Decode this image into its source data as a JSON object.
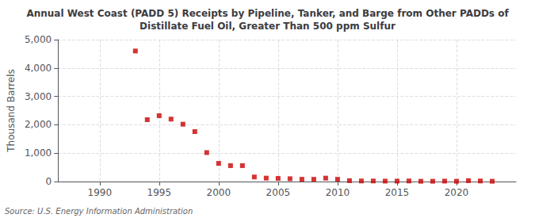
{
  "chart_data": {
    "type": "scatter",
    "title": "Annual West Coast (PADD 5) Receipts by Pipeline, Tanker, and Barge from Other PADDs of\nDistillate Fuel Oil, Greater Than 500 ppm Sulfur",
    "ylabel": "Thousand Barrels",
    "annotation": "Source: U.S. Energy Information Administration",
    "x": [
      1993,
      1994,
      1995,
      1996,
      1997,
      1998,
      1999,
      2000,
      2001,
      2002,
      2003,
      2004,
      2005,
      2006,
      2007,
      2008,
      2009,
      2010,
      2011,
      2012,
      2013,
      2014,
      2015,
      2016,
      2017,
      2018,
      2019,
      2020,
      2021,
      2022,
      2023
    ],
    "values": [
      4600,
      2180,
      2320,
      2200,
      2020,
      1760,
      1020,
      640,
      560,
      560,
      160,
      120,
      110,
      100,
      80,
      80,
      120,
      80,
      30,
      20,
      20,
      15,
      15,
      20,
      10,
      10,
      15,
      10,
      30,
      20,
      10
    ],
    "color": "#cc0000",
    "marker": "square",
    "xlim": [
      1986.5,
      2025
    ],
    "ylim": [
      0,
      5000
    ],
    "xticks": [
      1990,
      1995,
      2000,
      2005,
      2010,
      2015,
      2020
    ],
    "yticks": [
      0,
      {
        "value": 1000,
        "label": "1,000"
      },
      {
        "value": 2000,
        "label": "2,000"
      },
      {
        "value": 3000,
        "label": "3,000"
      },
      {
        "value": 4000,
        "label": "4,000"
      },
      {
        "value": 5000,
        "label": "5,000"
      }
    ],
    "grid": true
  }
}
